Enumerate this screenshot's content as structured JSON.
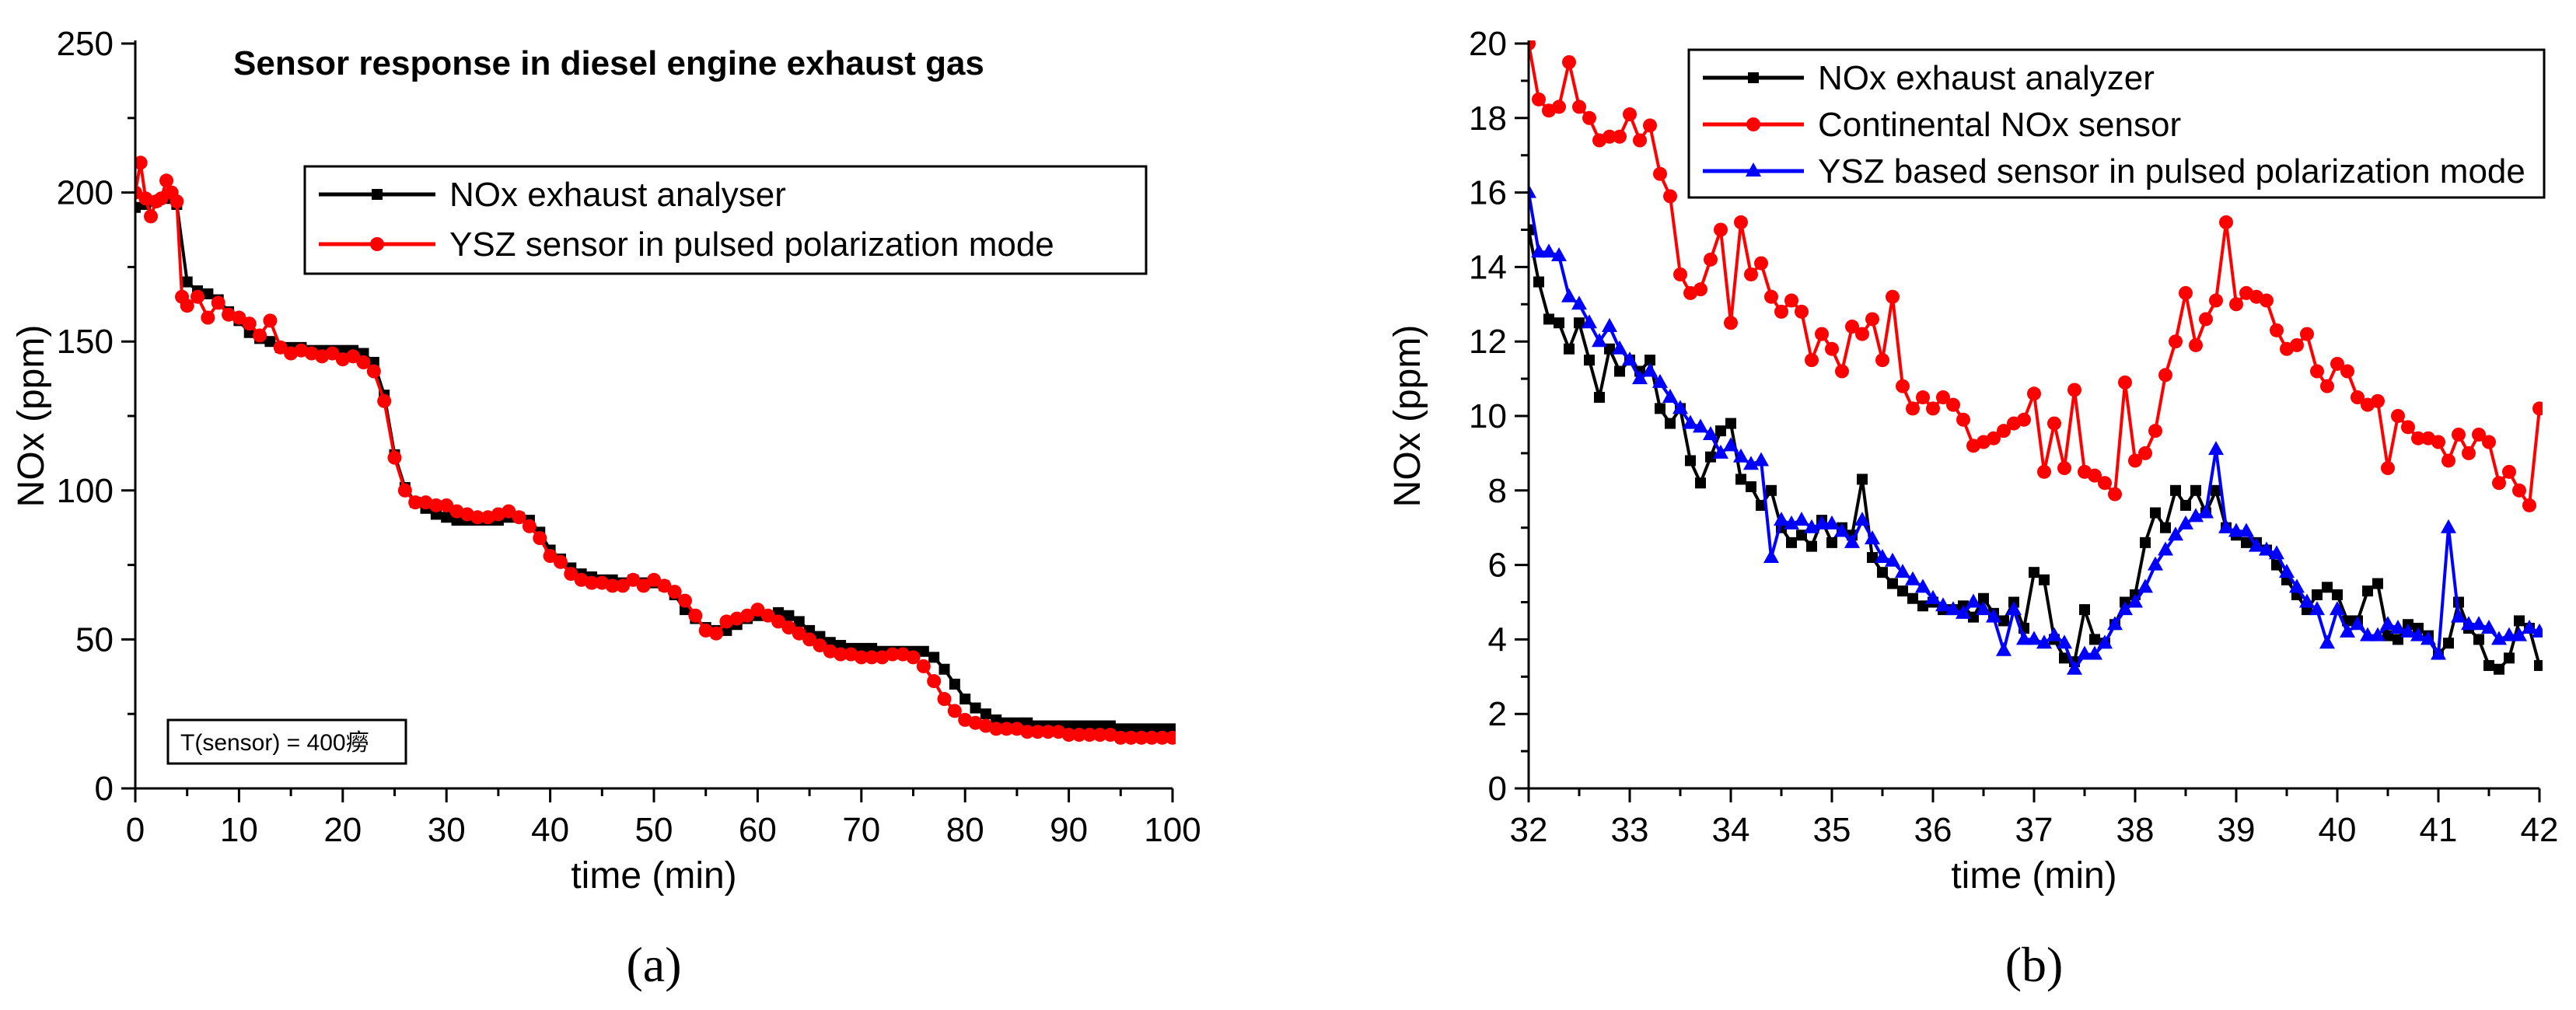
{
  "chart_data": [
    {
      "panel_label": "(a)",
      "type": "line",
      "title": "Sensor response in diesel engine exhaust gas",
      "xlabel": "time (min)",
      "ylabel": "NOx (ppm)",
      "xlim": [
        0,
        100
      ],
      "ylim": [
        0,
        250
      ],
      "xticks": [
        0,
        10,
        20,
        30,
        40,
        50,
        60,
        70,
        80,
        90,
        100
      ],
      "yticks": [
        0,
        50,
        100,
        150,
        200,
        250
      ],
      "legend_position": "top-center",
      "annotation": "T(sensor) = 400癆",
      "series": [
        {
          "name": "NOx exhaust analyser",
          "color": "#000000",
          "marker": "square",
          "x": [
            0,
            1,
            2,
            3,
            4,
            5,
            6,
            7,
            8,
            9,
            10,
            11,
            12,
            13,
            14,
            15,
            16,
            17,
            18,
            19,
            20,
            21,
            22,
            23,
            24,
            25,
            26,
            27,
            28,
            29,
            30,
            31,
            32,
            33,
            34,
            35,
            36,
            37,
            38,
            39,
            40,
            41,
            42,
            43,
            44,
            45,
            46,
            47,
            48,
            49,
            50,
            51,
            52,
            53,
            54,
            55,
            56,
            57,
            58,
            59,
            60,
            61,
            62,
            63,
            64,
            65,
            66,
            67,
            68,
            69,
            70,
            71,
            72,
            73,
            74,
            75,
            76,
            77,
            78,
            79,
            80,
            81,
            82,
            83,
            84,
            85,
            86,
            87,
            88,
            89,
            90,
            91,
            92,
            93,
            94,
            95,
            96,
            97,
            98,
            99,
            100
          ],
          "y": [
            195,
            196,
            197,
            198,
            196,
            170,
            167,
            166,
            164,
            160,
            157,
            153,
            151,
            150,
            148,
            148,
            148,
            147,
            147,
            147,
            147,
            147,
            146,
            143,
            132,
            112,
            101,
            96,
            94,
            92,
            91,
            90,
            90,
            90,
            90,
            90,
            91,
            91,
            90,
            86,
            80,
            77,
            74,
            72,
            71,
            70,
            70,
            69,
            70,
            69,
            69,
            68,
            65,
            60,
            57,
            54,
            53,
            53,
            55,
            57,
            58,
            58,
            59,
            58,
            56,
            53,
            51,
            49,
            48,
            47,
            47,
            47,
            46,
            46,
            46,
            46,
            46,
            44,
            40,
            35,
            30,
            27,
            25,
            23,
            22,
            22,
            22,
            21,
            21,
            21,
            21,
            21,
            21,
            21,
            21,
            20,
            20,
            20,
            20,
            20,
            20
          ]
        },
        {
          "name": "YSZ sensor in pulsed polarization mode",
          "color": "#ff0000",
          "marker": "circle",
          "x": [
            0,
            0.5,
            1,
            1.5,
            2,
            2.5,
            3,
            3.5,
            4,
            4.5,
            5,
            6,
            7,
            8,
            9,
            10,
            11,
            12,
            13,
            14,
            15,
            16,
            17,
            18,
            19,
            20,
            21,
            22,
            23,
            24,
            25,
            26,
            27,
            28,
            29,
            30,
            31,
            32,
            33,
            34,
            35,
            36,
            37,
            38,
            39,
            40,
            41,
            42,
            43,
            44,
            45,
            46,
            47,
            48,
            49,
            50,
            51,
            52,
            53,
            54,
            55,
            56,
            57,
            58,
            59,
            60,
            61,
            62,
            63,
            64,
            65,
            66,
            67,
            68,
            69,
            70,
            71,
            72,
            73,
            74,
            75,
            76,
            77,
            78,
            79,
            80,
            81,
            82,
            83,
            84,
            85,
            86,
            87,
            88,
            89,
            90,
            91,
            92,
            93,
            94,
            95,
            96,
            97,
            98,
            99,
            100
          ],
          "y": [
            200,
            210,
            198,
            192,
            197,
            198,
            204,
            200,
            197,
            165,
            162,
            165,
            158,
            163,
            159,
            158,
            156,
            152,
            157,
            148,
            146,
            147,
            146,
            145,
            146,
            144,
            145,
            143,
            140,
            130,
            111,
            100,
            96,
            96,
            95,
            95,
            93,
            92,
            91,
            91,
            92,
            93,
            91,
            88,
            84,
            78,
            76,
            72,
            70,
            69,
            69,
            68,
            68,
            70,
            68,
            70,
            68,
            66,
            63,
            58,
            53,
            52,
            56,
            57,
            58,
            60,
            58,
            56,
            54,
            52,
            50,
            48,
            46,
            45,
            45,
            44,
            44,
            44,
            45,
            45,
            44,
            41,
            36,
            30,
            26,
            23,
            22,
            21,
            20,
            20,
            20,
            19,
            19,
            19,
            19,
            18,
            18,
            18,
            18,
            18,
            17,
            17,
            17,
            17,
            17,
            17
          ]
        }
      ]
    },
    {
      "panel_label": "(b)",
      "type": "line",
      "title": "",
      "xlabel": "time (min)",
      "ylabel": "NOx  (ppm)",
      "xlim": [
        32,
        42
      ],
      "ylim": [
        0,
        20
      ],
      "xticks": [
        32,
        33,
        34,
        35,
        36,
        37,
        38,
        39,
        40,
        41,
        42
      ],
      "yticks": [
        0,
        2,
        4,
        6,
        8,
        10,
        12,
        14,
        16,
        18,
        20
      ],
      "legend_position": "top-right",
      "series": [
        {
          "name": "NOx exhaust analyzer",
          "color": "#000000",
          "marker": "square",
          "x": [
            32,
            32.1,
            32.2,
            32.3,
            32.4,
            32.5,
            32.6,
            32.7,
            32.8,
            32.9,
            33,
            33.1,
            33.2,
            33.3,
            33.4,
            33.5,
            33.6,
            33.7,
            33.8,
            33.9,
            34,
            34.1,
            34.2,
            34.3,
            34.4,
            34.5,
            34.6,
            34.7,
            34.8,
            34.9,
            35,
            35.1,
            35.2,
            35.3,
            35.4,
            35.5,
            35.6,
            35.7,
            35.8,
            35.9,
            36,
            36.1,
            36.2,
            36.3,
            36.4,
            36.5,
            36.6,
            36.7,
            36.8,
            36.9,
            37,
            37.1,
            37.2,
            37.3,
            37.4,
            37.5,
            37.6,
            37.7,
            37.8,
            37.9,
            38,
            38.1,
            38.2,
            38.3,
            38.4,
            38.5,
            38.6,
            38.7,
            38.8,
            38.9,
            39,
            39.1,
            39.2,
            39.3,
            39.4,
            39.5,
            39.6,
            39.7,
            39.8,
            39.9,
            40,
            40.1,
            40.2,
            40.3,
            40.4,
            40.5,
            40.6,
            40.7,
            40.8,
            40.9,
            41,
            41.1,
            41.2,
            41.3,
            41.4,
            41.5,
            41.6,
            41.7,
            41.8,
            41.9,
            42
          ],
          "y": [
            15,
            13.6,
            12.6,
            12.5,
            11.8,
            12.5,
            11.5,
            10.5,
            11.8,
            11.2,
            11.5,
            11.2,
            11.5,
            10.2,
            9.8,
            10.2,
            8.8,
            8.2,
            8.9,
            9.6,
            9.8,
            8.3,
            8.1,
            7.6,
            8.0,
            7.0,
            6.6,
            6.8,
            6.5,
            7.2,
            6.6,
            7.0,
            6.8,
            8.3,
            6.2,
            5.8,
            5.5,
            5.3,
            5.1,
            4.9,
            5.0,
            4.8,
            4.8,
            4.9,
            4.6,
            5.1,
            4.7,
            4.5,
            5.0,
            4.3,
            5.8,
            5.6,
            4.0,
            3.5,
            3.4,
            4.8,
            4.0,
            3.9,
            4.4,
            5.0,
            5.2,
            6.6,
            7.4,
            7.0,
            8.0,
            7.6,
            8.0,
            7.4,
            8.0,
            7.0,
            6.8,
            6.6,
            6.6,
            6.4,
            6.0,
            5.6,
            5.2,
            4.8,
            5.2,
            5.4,
            5.2,
            4.5,
            4.5,
            5.3,
            5.5,
            4.1,
            4.0,
            4.4,
            4.3,
            4.1,
            3.6,
            3.9,
            5.0,
            4.3,
            4.0,
            3.3,
            3.2,
            3.5,
            4.5,
            4.3,
            3.3
          ]
        },
        {
          "name": "Continental NOx sensor",
          "color": "#ff0000",
          "marker": "circle",
          "x": [
            32,
            32.1,
            32.2,
            32.3,
            32.4,
            32.5,
            32.6,
            32.7,
            32.8,
            32.9,
            33,
            33.1,
            33.2,
            33.3,
            33.4,
            33.5,
            33.6,
            33.7,
            33.8,
            33.9,
            34,
            34.1,
            34.2,
            34.3,
            34.4,
            34.5,
            34.6,
            34.7,
            34.8,
            34.9,
            35,
            35.1,
            35.2,
            35.3,
            35.4,
            35.5,
            35.6,
            35.7,
            35.8,
            35.9,
            36,
            36.1,
            36.2,
            36.3,
            36.4,
            36.5,
            36.6,
            36.7,
            36.8,
            36.9,
            37,
            37.1,
            37.2,
            37.3,
            37.4,
            37.5,
            37.6,
            37.7,
            37.8,
            37.9,
            38,
            38.1,
            38.2,
            38.3,
            38.4,
            38.5,
            38.6,
            38.7,
            38.8,
            38.9,
            39,
            39.1,
            39.2,
            39.3,
            39.4,
            39.5,
            39.6,
            39.7,
            39.8,
            39.9,
            40,
            40.1,
            40.2,
            40.3,
            40.4,
            40.5,
            40.6,
            40.7,
            40.8,
            40.9,
            41,
            41.1,
            41.2,
            41.3,
            41.4,
            41.5,
            41.6,
            41.7,
            41.8,
            41.9,
            42
          ],
          "y": [
            20,
            18.5,
            18.2,
            18.3,
            19.5,
            18.3,
            18,
            17.4,
            17.5,
            17.5,
            18.1,
            17.4,
            17.8,
            16.5,
            15.9,
            13.8,
            13.3,
            13.4,
            14.2,
            15.0,
            12.5,
            15.2,
            13.8,
            14.1,
            13.2,
            12.8,
            13.1,
            12.8,
            11.5,
            12.2,
            11.8,
            11.2,
            12.4,
            12.2,
            12.6,
            11.5,
            13.2,
            10.8,
            10.2,
            10.5,
            10.2,
            10.5,
            10.3,
            9.9,
            9.2,
            9.3,
            9.4,
            9.6,
            9.8,
            9.9,
            10.6,
            8.5,
            9.8,
            8.6,
            10.7,
            8.5,
            8.4,
            8.2,
            7.9,
            10.9,
            8.8,
            9.0,
            9.6,
            11.1,
            12.0,
            13.3,
            11.9,
            12.6,
            13.1,
            15.2,
            13.0,
            13.3,
            13.2,
            13.1,
            12.3,
            11.8,
            11.9,
            12.2,
            11.2,
            10.8,
            11.4,
            11.2,
            10.5,
            10.3,
            10.4,
            8.6,
            10.0,
            9.7,
            9.4,
            9.4,
            9.3,
            8.8,
            9.5,
            9.0,
            9.5,
            9.3,
            8.2,
            8.5,
            8.0,
            7.6,
            10.2
          ]
        },
        {
          "name": "YSZ based sensor in pulsed polarization mode",
          "color": "#0000ff",
          "marker": "triangle",
          "x": [
            32,
            32.1,
            32.2,
            32.3,
            32.4,
            32.5,
            32.6,
            32.7,
            32.8,
            32.9,
            33,
            33.1,
            33.2,
            33.3,
            33.4,
            33.5,
            33.6,
            33.7,
            33.8,
            33.9,
            34,
            34.1,
            34.2,
            34.3,
            34.4,
            34.5,
            34.6,
            34.7,
            34.8,
            34.9,
            35,
            35.1,
            35.2,
            35.3,
            35.4,
            35.5,
            35.6,
            35.7,
            35.8,
            35.9,
            36,
            36.1,
            36.2,
            36.3,
            36.4,
            36.5,
            36.6,
            36.7,
            36.8,
            36.9,
            37,
            37.1,
            37.2,
            37.3,
            37.4,
            37.5,
            37.6,
            37.7,
            37.8,
            37.9,
            38,
            38.1,
            38.2,
            38.3,
            38.4,
            38.5,
            38.6,
            38.7,
            38.8,
            38.9,
            39,
            39.1,
            39.2,
            39.3,
            39.4,
            39.5,
            39.6,
            39.7,
            39.8,
            39.9,
            40,
            40.1,
            40.2,
            40.3,
            40.4,
            40.5,
            40.6,
            40.7,
            40.8,
            40.9,
            41,
            41.1,
            41.2,
            41.3,
            41.4,
            41.5,
            41.6,
            41.7,
            41.8,
            41.9,
            42
          ],
          "y": [
            16,
            14.4,
            14.4,
            14.3,
            13.2,
            13.0,
            12.5,
            12.0,
            12.4,
            11.8,
            11.5,
            11.0,
            11.2,
            10.9,
            10.5,
            10.2,
            9.8,
            9.7,
            9.5,
            9.0,
            9.2,
            8.9,
            8.7,
            8.8,
            6.2,
            7.2,
            7.1,
            7.2,
            7.0,
            7.1,
            7.1,
            6.9,
            6.6,
            7.2,
            6.7,
            6.2,
            6.1,
            5.8,
            5.6,
            5.4,
            5.1,
            4.9,
            4.8,
            4.7,
            5.0,
            4.8,
            4.6,
            3.7,
            4.8,
            4.0,
            4.0,
            3.9,
            4.1,
            3.9,
            3.2,
            3.6,
            3.6,
            3.9,
            4.4,
            4.8,
            5.0,
            5.4,
            6.0,
            6.4,
            6.8,
            7.1,
            7.3,
            7.4,
            9.1,
            7.0,
            6.9,
            6.9,
            6.5,
            6.4,
            6.3,
            5.8,
            5.4,
            5.0,
            4.8,
            3.9,
            4.8,
            4.2,
            4.4,
            4.1,
            4.1,
            4.4,
            4.3,
            4.2,
            4.1,
            4.0,
            3.6,
            7.0,
            4.6,
            4.4,
            4.4,
            4.3,
            4.0,
            4.1,
            4.1,
            4.3,
            4.2
          ]
        }
      ]
    }
  ]
}
